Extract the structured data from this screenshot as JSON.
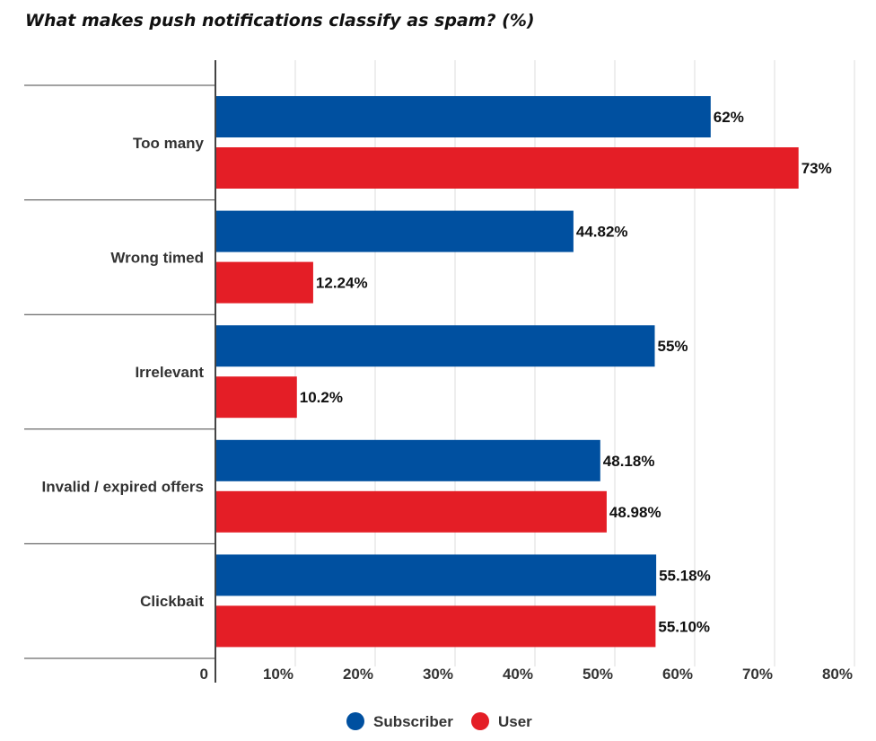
{
  "chart_data": {
    "type": "bar",
    "orientation": "horizontal",
    "title": "What makes push notifications classify as spam? (%)",
    "categories": [
      "Too many",
      "Wrong timed",
      "Irrelevant",
      "Invalid / expired offers",
      "Clickbait"
    ],
    "series": [
      {
        "name": "Subscriber",
        "color": "#0050a0",
        "values": [
          62,
          44.82,
          55,
          48.18,
          55.18
        ],
        "labels": [
          "62%",
          "44.82%",
          "55%",
          "48.18%",
          "55.18%"
        ]
      },
      {
        "name": "User",
        "color": "#e41e26",
        "values": [
          73,
          12.24,
          10.2,
          48.98,
          55.1
        ],
        "labels": [
          "73%",
          "12.24%",
          "10.2%",
          "48.98%",
          "55.10%"
        ]
      }
    ],
    "x_ticks": [
      "0",
      "10%",
      "20%",
      "30%",
      "40%",
      "50%",
      "60%",
      "70%",
      "80%"
    ],
    "xlim": [
      0,
      80
    ],
    "grid": true,
    "legend_position": "bottom"
  }
}
